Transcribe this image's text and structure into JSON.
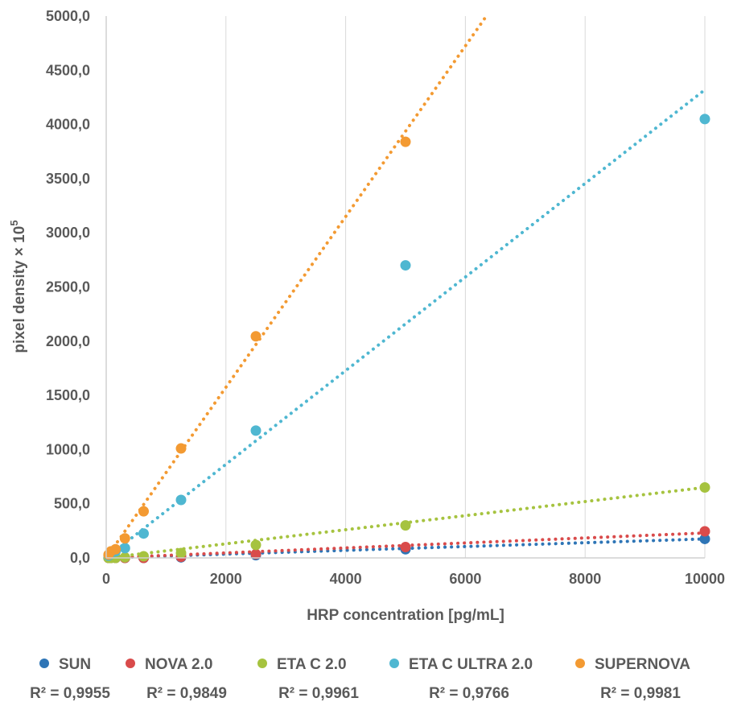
{
  "chart_data": {
    "type": "scatter",
    "title": "",
    "xlabel": "HRP concentration [pg/mL]",
    "ylabel_main": "pixel density × 10",
    "ylabel_exp": "5",
    "xlim": [
      0,
      10000
    ],
    "ylim": [
      0,
      5000
    ],
    "x_ticks": [
      0,
      2000,
      4000,
      6000,
      8000,
      10000
    ],
    "x_tick_labels": [
      "0",
      "2000",
      "4000",
      "6000",
      "8000",
      "10000"
    ],
    "y_ticks": [
      0,
      500,
      1000,
      1500,
      2000,
      2500,
      3000,
      3500,
      4000,
      4500,
      5000
    ],
    "y_tick_labels": [
      "0,0",
      "500,0",
      "1000,0",
      "1500,0",
      "2000,0",
      "2500,0",
      "3000,0",
      "3500,0",
      "4000,0",
      "4500,0",
      "5000,0"
    ],
    "grid": "vertical",
    "trendline": "linear, dotted",
    "legend_position": "bottom",
    "series": [
      {
        "name": "SUN",
        "color": "#2e75b6",
        "r2_label": "R² = 0,9955",
        "x": [
          39,
          78,
          156,
          313,
          625,
          1250,
          2500,
          5000,
          10000
        ],
        "y": [
          0,
          0,
          0,
          0,
          0,
          5,
          25,
          80,
          175
        ],
        "trend_end": [
          10000,
          175
        ]
      },
      {
        "name": "NOVA 2.0",
        "color": "#d94b4b",
        "r2_label": "R² = 0,9849",
        "x": [
          39,
          78,
          156,
          313,
          625,
          1250,
          2500,
          5000,
          10000
        ],
        "y": [
          0,
          0,
          0,
          0,
          0,
          10,
          35,
          100,
          245
        ],
        "trend_end": [
          10000,
          230
        ]
      },
      {
        "name": "ETA C 2.0",
        "color": "#a6c33f",
        "r2_label": "R² = 0,9961",
        "x": [
          39,
          78,
          156,
          313,
          625,
          1250,
          2500,
          5000,
          10000
        ],
        "y": [
          0,
          0,
          0,
          5,
          15,
          45,
          120,
          300,
          650
        ],
        "trend_end": [
          10000,
          650
        ]
      },
      {
        "name": "ETA C ULTRA 2.0",
        "color": "#4fb7d1",
        "r2_label": "R² = 0,9766",
        "x": [
          39,
          78,
          156,
          313,
          625,
          1250,
          2500,
          5000,
          10000
        ],
        "y": [
          20,
          45,
          60,
          90,
          225,
          535,
          1175,
          2700,
          4050
        ],
        "trend_end": [
          10000,
          4320
        ]
      },
      {
        "name": "SUPERNOVA",
        "color": "#f39a32",
        "r2_label": "R² = 0,9981",
        "x": [
          39,
          78,
          156,
          313,
          625,
          1250,
          2500,
          5000
        ],
        "y": [
          30,
          60,
          80,
          180,
          430,
          1010,
          2045,
          3840
        ],
        "trend_end": [
          6350,
          5000
        ]
      }
    ]
  }
}
